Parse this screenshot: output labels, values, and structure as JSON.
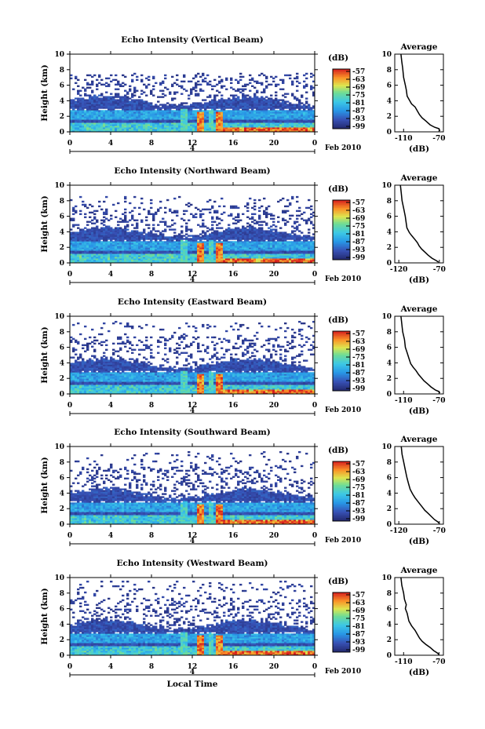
{
  "figure": {
    "xlabel": "Local Time",
    "date_label": "Feb 2010",
    "day_label": "4",
    "units_label": "(dB)",
    "profile_title": "Average",
    "profile_xlabel": "(dB)"
  },
  "chart_data": [
    {
      "type": "heatmap",
      "title": "Echo Intensity (Vertical Beam)",
      "ylabel": "Height (km)",
      "xlabel": "",
      "x_ticks": [
        "0",
        "4",
        "8",
        "12",
        "16",
        "20",
        "0"
      ],
      "y_ticks": [
        "0",
        "2",
        "4",
        "6",
        "8",
        "10"
      ],
      "xlim": [
        0,
        24
      ],
      "ylim": [
        0,
        10
      ],
      "colorbar": {
        "label": "(dB)",
        "ticks": [
          "-57",
          "-63",
          "-69",
          "-75",
          "-81",
          "-87",
          "-93",
          "-99"
        ]
      }
    },
    {
      "type": "heatmap",
      "title": "Echo Intensity (Northward Beam)",
      "ylabel": "Height (km)",
      "xlabel": "",
      "x_ticks": [
        "0",
        "4",
        "8",
        "12",
        "16",
        "20",
        "0"
      ],
      "y_ticks": [
        "0",
        "2",
        "4",
        "6",
        "8",
        "10"
      ],
      "xlim": [
        0,
        24
      ],
      "ylim": [
        0,
        10
      ],
      "colorbar": {
        "label": "(dB)",
        "ticks": [
          "-57",
          "-63",
          "-69",
          "-75",
          "-81",
          "-87",
          "-93",
          "-99"
        ]
      }
    },
    {
      "type": "heatmap",
      "title": "Echo Intensity (Eastward Beam)",
      "ylabel": "Height (km)",
      "xlabel": "",
      "x_ticks": [
        "0",
        "4",
        "8",
        "12",
        "16",
        "20",
        "0"
      ],
      "y_ticks": [
        "0",
        "2",
        "4",
        "6",
        "8",
        "10"
      ],
      "xlim": [
        0,
        24
      ],
      "ylim": [
        0,
        10
      ],
      "colorbar": {
        "label": "(dB)",
        "ticks": [
          "-57",
          "-63",
          "-69",
          "-75",
          "-81",
          "-87",
          "-93",
          "-99"
        ]
      }
    },
    {
      "type": "heatmap",
      "title": "Echo Intensity (Southward Beam)",
      "ylabel": "Height (km)",
      "xlabel": "",
      "x_ticks": [
        "0",
        "4",
        "8",
        "12",
        "16",
        "20",
        "0"
      ],
      "y_ticks": [
        "0",
        "2",
        "4",
        "6",
        "8",
        "10"
      ],
      "xlim": [
        0,
        24
      ],
      "ylim": [
        0,
        10
      ],
      "colorbar": {
        "label": "(dB)",
        "ticks": [
          "-57",
          "-63",
          "-69",
          "-75",
          "-81",
          "-87",
          "-93",
          "-99"
        ]
      }
    },
    {
      "type": "heatmap",
      "title": "Echo Intensity (Westward Beam)",
      "ylabel": "Height (km)",
      "xlabel": "Local Time",
      "x_ticks": [
        "0",
        "4",
        "8",
        "12",
        "16",
        "20",
        "0"
      ],
      "y_ticks": [
        "0",
        "2",
        "4",
        "6",
        "8",
        "10"
      ],
      "xlim": [
        0,
        24
      ],
      "ylim": [
        0,
        10
      ],
      "colorbar": {
        "label": "(dB)",
        "ticks": [
          "-57",
          "-63",
          "-69",
          "-75",
          "-81",
          "-87",
          "-93",
          "-99"
        ]
      }
    },
    {
      "type": "line",
      "title": "Average",
      "xlabel": "(dB)",
      "x_ticks": [
        "-110",
        "-70"
      ],
      "y_ticks": [
        "0",
        "2",
        "4",
        "6",
        "8",
        "10"
      ],
      "xlim": [
        -120,
        -65
      ],
      "ylim": [
        0,
        10
      ],
      "x": [
        -113,
        -112,
        -111,
        -110,
        -108,
        -107,
        -106,
        -104,
        -101,
        -97,
        -94,
        -92,
        -89,
        -85,
        -80,
        -75,
        -70,
        -69
      ],
      "y": [
        10,
        9,
        8.2,
        7,
        6,
        5.4,
        4.6,
        4.2,
        3.6,
        3.2,
        2.6,
        2.2,
        1.8,
        1.4,
        0.9,
        0.6,
        0.4,
        0.1
      ]
    },
    {
      "type": "line",
      "title": "Average",
      "xlabel": "(dB)",
      "x_ticks": [
        "-120",
        "-70"
      ],
      "y_ticks": [
        "0",
        "2",
        "4",
        "6",
        "8",
        "10"
      ],
      "xlim": [
        -125,
        -65
      ],
      "ylim": [
        0,
        10
      ],
      "x": [
        -118,
        -117,
        -116,
        -114,
        -112,
        -111,
        -110,
        -107,
        -104,
        -100,
        -97,
        -95,
        -92,
        -88,
        -84,
        -79,
        -74,
        -71
      ],
      "y": [
        10,
        9,
        8,
        7,
        6,
        5.2,
        4.5,
        3.9,
        3.5,
        3.0,
        2.6,
        2.2,
        1.8,
        1.4,
        1.0,
        0.6,
        0.3,
        0.1
      ]
    },
    {
      "type": "line",
      "title": "Average",
      "xlabel": "(dB)",
      "x_ticks": [
        "-110",
        "-70"
      ],
      "y_ticks": [
        "0",
        "2",
        "4",
        "6",
        "8",
        "10"
      ],
      "xlim": [
        -120,
        -65
      ],
      "ylim": [
        0,
        10
      ],
      "x": [
        -113,
        -112,
        -111,
        -109,
        -108,
        -106,
        -104,
        -102,
        -99,
        -96,
        -93,
        -90,
        -87,
        -83,
        -79,
        -74,
        -70,
        -69
      ],
      "y": [
        10,
        9,
        8,
        7,
        6,
        5.3,
        4.6,
        3.9,
        3.4,
        3.0,
        2.5,
        2.1,
        1.7,
        1.3,
        0.9,
        0.5,
        0.3,
        0.1
      ]
    },
    {
      "type": "line",
      "title": "Average",
      "xlabel": "(dB)",
      "x_ticks": [
        "-120",
        "-70"
      ],
      "y_ticks": [
        "0",
        "2",
        "4",
        "6",
        "8",
        "10"
      ],
      "xlim": [
        -125,
        -65
      ],
      "ylim": [
        0,
        10
      ],
      "x": [
        -117,
        -116,
        -114,
        -112,
        -110,
        -108,
        -106,
        -103,
        -100,
        -97,
        -94,
        -91,
        -88,
        -84,
        -80,
        -76,
        -72,
        -70
      ],
      "y": [
        10,
        9,
        8,
        7,
        6,
        5.2,
        4.5,
        3.9,
        3.4,
        3.0,
        2.6,
        2.2,
        1.8,
        1.4,
        1.0,
        0.6,
        0.3,
        0.1
      ]
    },
    {
      "type": "line",
      "title": "Average",
      "xlabel": "(dB)",
      "x_ticks": [
        "-110",
        "-70"
      ],
      "y_ticks": [
        "0",
        "2",
        "4",
        "6",
        "8",
        "10"
      ],
      "xlim": [
        -120,
        -65
      ],
      "ylim": [
        0,
        10
      ],
      "x": [
        -113,
        -112,
        -110,
        -109,
        -107,
        -108,
        -106,
        -104,
        -101,
        -97,
        -94,
        -92,
        -89,
        -85,
        -80,
        -76,
        -72,
        -70
      ],
      "y": [
        10,
        9,
        8,
        7.2,
        6.5,
        6,
        5.4,
        4.4,
        3.8,
        3.2,
        2.6,
        2.2,
        1.8,
        1.4,
        1.0,
        0.6,
        0.3,
        0.1
      ]
    }
  ]
}
